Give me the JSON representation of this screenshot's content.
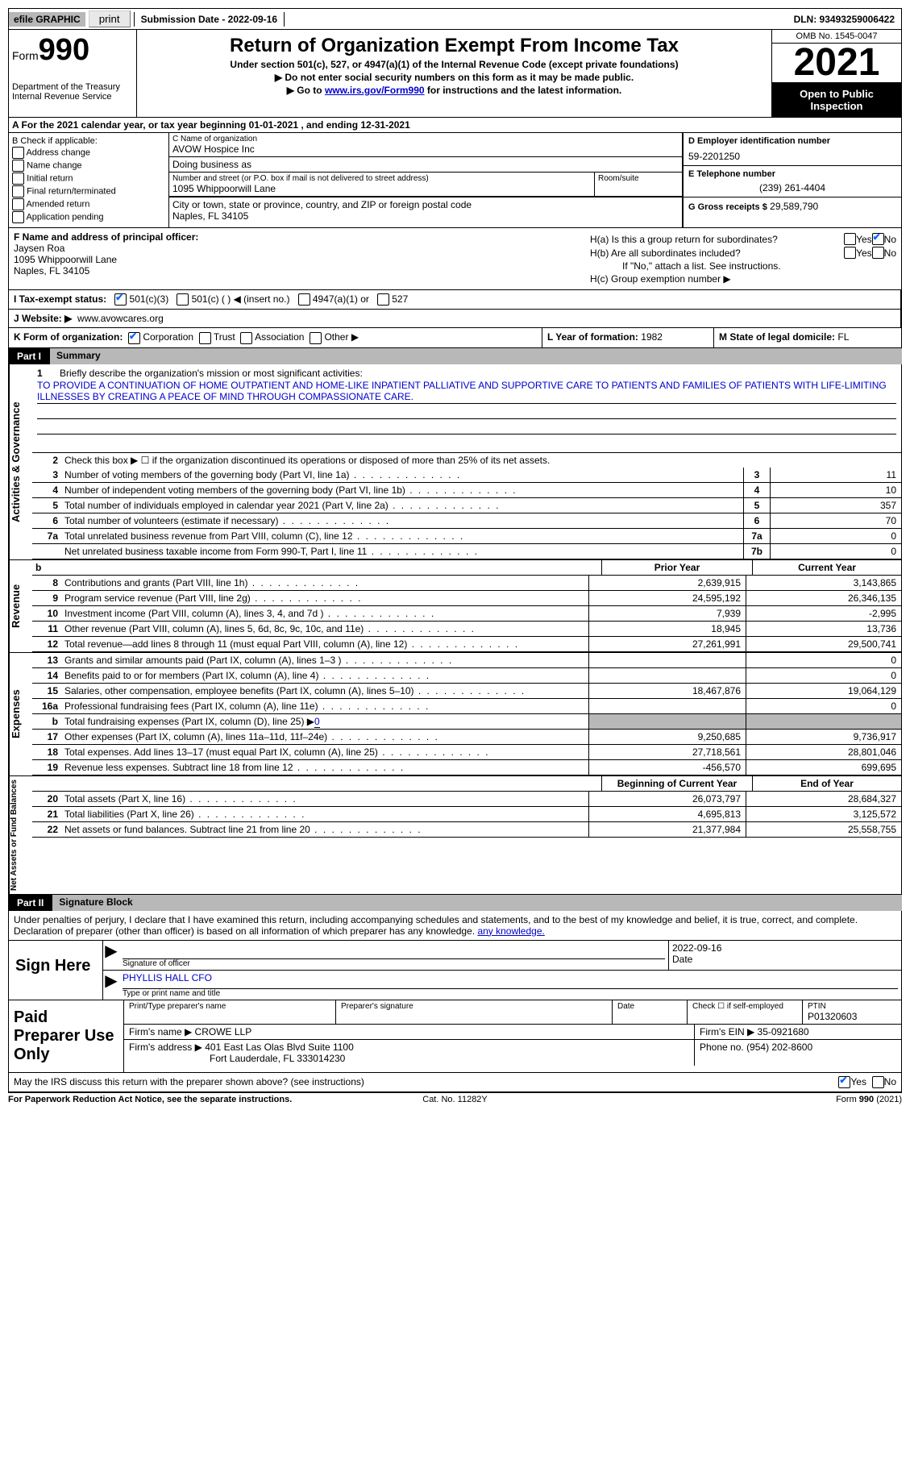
{
  "topbar": {
    "efile": "efile GRAPHIC",
    "print": "print",
    "submission": "Submission Date - 2022-09-16",
    "dln": "DLN: 93493259006422"
  },
  "header": {
    "form_label": "Form",
    "form_num": "990",
    "dept": "Department of the Treasury Internal Revenue Service",
    "title": "Return of Organization Exempt From Income Tax",
    "subtitle": "Under section 501(c), 527, or 4947(a)(1) of the Internal Revenue Code (except private foundations)",
    "arrow1": "▶ Do not enter social security numbers on this form as it may be made public.",
    "arrow2_pre": "▶ Go to ",
    "arrow2_link": "www.irs.gov/Form990",
    "arrow2_post": " for instructions and the latest information.",
    "omb": "OMB No. 1545-0047",
    "year": "2021",
    "open": "Open to Public Inspection"
  },
  "a": "A For the 2021 calendar year, or tax year beginning 01-01-2021   , and ending 12-31-2021",
  "b": {
    "title": "B Check if applicable:",
    "opts": [
      "Address change",
      "Name change",
      "Initial return",
      "Final return/terminated",
      "Amended return",
      "Application pending"
    ]
  },
  "c": {
    "name_lbl": "C Name of organization",
    "name": "AVOW Hospice Inc",
    "dba_lbl": "Doing business as",
    "dba": "",
    "addr_lbl": "Number and street (or P.O. box if mail is not delivered to street address)",
    "addr": "1095 Whippoorwill Lane",
    "room_lbl": "Room/suite",
    "city_lbl": "City or town, state or province, country, and ZIP or foreign postal code",
    "city": "Naples, FL  34105"
  },
  "d": {
    "lbl": "D Employer identification number",
    "val": "59-2201250"
  },
  "e": {
    "lbl": "E Telephone number",
    "val": "(239) 261-4404"
  },
  "g": {
    "lbl": "G Gross receipts $",
    "val": "29,589,790"
  },
  "f": {
    "lbl": "F Name and address of principal officer:",
    "name": "Jaysen Roa",
    "addr": "1095 Whippoorwill Lane",
    "city": "Naples, FL  34105"
  },
  "h": {
    "a_q": "H(a)  Is this a group return for subordinates?",
    "b_q": "H(b)  Are all subordinates included?",
    "note": "If \"No,\" attach a list. See instructions.",
    "c_q": "H(c)  Group exemption number ▶"
  },
  "i": {
    "lbl": "I   Tax-exempt status:",
    "opts": [
      "501(c)(3)",
      "501(c) (  ) ◀ (insert no.)",
      "4947(a)(1) or",
      "527"
    ]
  },
  "j": {
    "lbl": "J   Website: ▶",
    "val": "www.avowcares.org"
  },
  "k": {
    "lbl": "K Form of organization:",
    "opts": [
      "Corporation",
      "Trust",
      "Association",
      "Other ▶"
    ]
  },
  "l": {
    "lbl": "L Year of formation:",
    "val": "1982"
  },
  "m": {
    "lbl": "M State of legal domicile:",
    "val": "FL"
  },
  "parts": {
    "p1": "Part I",
    "p1t": "Summary",
    "p2": "Part II",
    "p2t": "Signature Block"
  },
  "vtabs": {
    "ag": "Activities & Governance",
    "rev": "Revenue",
    "exp": "Expenses",
    "na": "Net Assets or Fund Balances"
  },
  "mission": {
    "q": "Briefly describe the organization's mission or most significant activities:",
    "text": "TO PROVIDE A CONTINUATION OF HOME OUTPATIENT AND HOME-LIKE INPATIENT PALLIATIVE AND SUPPORTIVE CARE TO PATIENTS AND FAMILIES OF PATIENTS WITH LIFE-LIMITING ILLNESSES BY CREATING A PEACE OF MIND THROUGH COMPASSIONATE CARE."
  },
  "line2": "Check this box ▶ ☐ if the organization discontinued its operations or disposed of more than 25% of its net assets.",
  "lines_single": [
    {
      "n": "3",
      "d": "Number of voting members of the governing body (Part VI, line 1a)",
      "b": "3",
      "v": "11"
    },
    {
      "n": "4",
      "d": "Number of independent voting members of the governing body (Part VI, line 1b)",
      "b": "4",
      "v": "10"
    },
    {
      "n": "5",
      "d": "Total number of individuals employed in calendar year 2021 (Part V, line 2a)",
      "b": "5",
      "v": "357"
    },
    {
      "n": "6",
      "d": "Total number of volunteers (estimate if necessary)",
      "b": "6",
      "v": "70"
    },
    {
      "n": "7a",
      "d": "Total unrelated business revenue from Part VIII, column (C), line 12",
      "b": "7a",
      "v": "0"
    },
    {
      "n": "",
      "d": "Net unrelated business taxable income from Form 990-T, Part I, line 11",
      "b": "7b",
      "v": "0"
    }
  ],
  "col_hdrs": {
    "prior": "Prior Year",
    "current": "Current Year",
    "beg": "Beginning of Current Year",
    "end": "End of Year"
  },
  "rev_lines": [
    {
      "n": "8",
      "d": "Contributions and grants (Part VIII, line 1h)",
      "p": "2,639,915",
      "c": "3,143,865"
    },
    {
      "n": "9",
      "d": "Program service revenue (Part VIII, line 2g)",
      "p": "24,595,192",
      "c": "26,346,135"
    },
    {
      "n": "10",
      "d": "Investment income (Part VIII, column (A), lines 3, 4, and 7d )",
      "p": "7,939",
      "c": "-2,995"
    },
    {
      "n": "11",
      "d": "Other revenue (Part VIII, column (A), lines 5, 6d, 8c, 9c, 10c, and 11e)",
      "p": "18,945",
      "c": "13,736"
    },
    {
      "n": "12",
      "d": "Total revenue—add lines 8 through 11 (must equal Part VIII, column (A), line 12)",
      "p": "27,261,991",
      "c": "29,500,741"
    }
  ],
  "exp_lines": [
    {
      "n": "13",
      "d": "Grants and similar amounts paid (Part IX, column (A), lines 1–3 )",
      "p": "",
      "c": "0"
    },
    {
      "n": "14",
      "d": "Benefits paid to or for members (Part IX, column (A), line 4)",
      "p": "",
      "c": "0"
    },
    {
      "n": "15",
      "d": "Salaries, other compensation, employee benefits (Part IX, column (A), lines 5–10)",
      "p": "18,467,876",
      "c": "19,064,129"
    },
    {
      "n": "16a",
      "d": "Professional fundraising fees (Part IX, column (A), line 11e)",
      "p": "",
      "c": "0"
    }
  ],
  "line16b": {
    "n": "b",
    "d_pre": "Total fundraising expenses (Part IX, column (D), line 25) ▶",
    "d_val": "0"
  },
  "exp_lines2": [
    {
      "n": "17",
      "d": "Other expenses (Part IX, column (A), lines 11a–11d, 11f–24e)",
      "p": "9,250,685",
      "c": "9,736,917"
    },
    {
      "n": "18",
      "d": "Total expenses. Add lines 13–17 (must equal Part IX, column (A), line 25)",
      "p": "27,718,561",
      "c": "28,801,046"
    },
    {
      "n": "19",
      "d": "Revenue less expenses. Subtract line 18 from line 12",
      "p": "-456,570",
      "c": "699,695"
    }
  ],
  "na_lines": [
    {
      "n": "20",
      "d": "Total assets (Part X, line 16)",
      "p": "26,073,797",
      "c": "28,684,327"
    },
    {
      "n": "21",
      "d": "Total liabilities (Part X, line 26)",
      "p": "4,695,813",
      "c": "3,125,572"
    },
    {
      "n": "22",
      "d": "Net assets or fund balances. Subtract line 21 from line 20",
      "p": "21,377,984",
      "c": "25,558,755"
    }
  ],
  "sig_decl": "Under penalties of perjury, I declare that I have examined this return, including accompanying schedules and statements, and to the best of my knowledge and belief, it is true, correct, and complete. Declaration of preparer (other than officer) is based on all information of which preparer has any knowledge.",
  "sign": {
    "here": "Sign Here",
    "sig_lbl": "Signature of officer",
    "date_lbl": "Date",
    "date": "2022-09-16",
    "name": "PHYLLIS HALL CFO",
    "name_lbl": "Type or print name and title"
  },
  "prep": {
    "title": "Paid Preparer Use Only",
    "name_lbl": "Print/Type preparer's name",
    "sig_lbl": "Preparer's signature",
    "date_lbl": "Date",
    "self_lbl": "Check ☐ if self-employed",
    "ptin_lbl": "PTIN",
    "ptin": "P01320603",
    "firm_lbl": "Firm's name    ▶",
    "firm": "CROWE LLP",
    "ein_lbl": "Firm's EIN ▶",
    "ein": "35-0921680",
    "addr_lbl": "Firm's address ▶",
    "addr1": "401 East Las Olas Blvd Suite 1100",
    "addr2": "Fort Lauderdale, FL  333014230",
    "phone_lbl": "Phone no.",
    "phone": "(954) 202-8600"
  },
  "discuss": "May the IRS discuss this return with the preparer shown above? (see instructions)",
  "foot": {
    "l": "For Paperwork Reduction Act Notice, see the separate instructions.",
    "c": "Cat. No. 11282Y",
    "r": "Form 990 (2021)"
  }
}
